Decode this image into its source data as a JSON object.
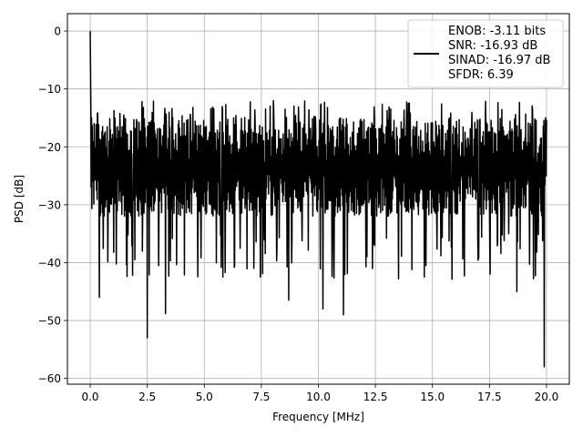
{
  "chart_data": {
    "type": "line",
    "title": "",
    "xlabel": "Frequency [MHz]",
    "ylabel": "PSD [dB]",
    "xlim": [
      -1.0,
      21.0
    ],
    "ylim": [
      -61.0,
      3.0
    ],
    "xticks": [
      0.0,
      2.5,
      5.0,
      7.5,
      10.0,
      12.5,
      15.0,
      17.5,
      20.0
    ],
    "xtick_labels": [
      "0.0",
      "2.5",
      "5.0",
      "7.5",
      "10.0",
      "12.5",
      "15.0",
      "17.5",
      "20.0"
    ],
    "yticks": [
      0,
      -10,
      -20,
      -30,
      -40,
      -50,
      -60
    ],
    "ytick_labels": [
      "0",
      "−10",
      "−20",
      "−30",
      "−40",
      "−50",
      "−60"
    ],
    "grid": true,
    "legend_position": "top-right",
    "series": [
      {
        "color": "#000000",
        "x_range": [
          0.0,
          20.0
        ],
        "peak": {
          "x": 0.0,
          "y": 0.0
        },
        "typical_band": [
          -32,
          -15
        ],
        "noted_dips": [
          {
            "x": 0.4,
            "y": -46
          },
          {
            "x": 2.5,
            "y": -53
          },
          {
            "x": 3.3,
            "y": -48.8
          },
          {
            "x": 8.7,
            "y": -46.5
          },
          {
            "x": 10.2,
            "y": -48
          },
          {
            "x": 11.1,
            "y": -49
          },
          {
            "x": 18.7,
            "y": -45
          },
          {
            "x": 19.9,
            "y": -58
          }
        ]
      }
    ],
    "legend": {
      "lines": [
        "ENOB: -3.11 bits",
        "SNR: -16.93 dB",
        "SINAD: -16.97 dB",
        "SFDR: 6.39"
      ]
    }
  }
}
